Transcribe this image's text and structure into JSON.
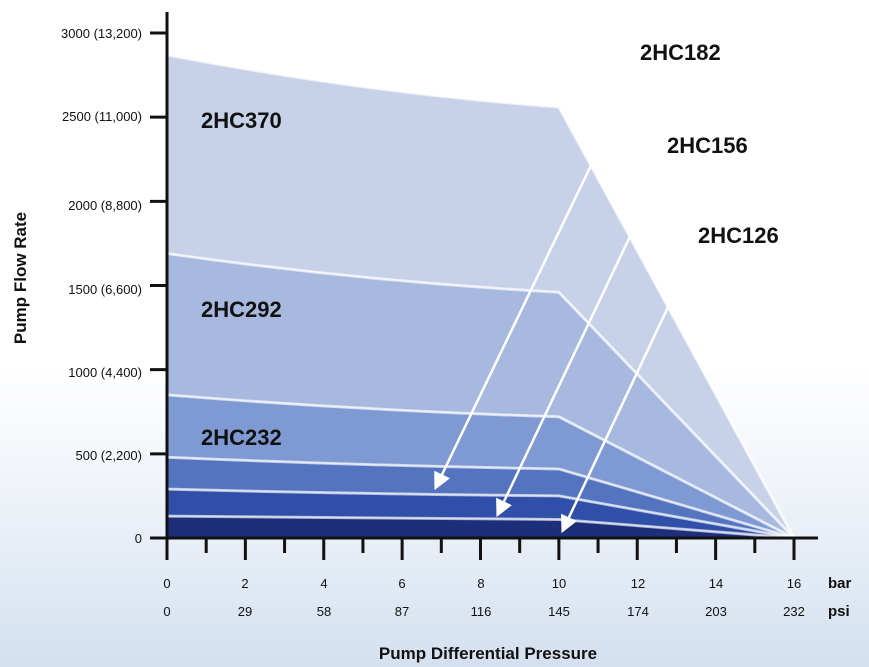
{
  "chart_data": {
    "type": "area",
    "xlabel": "Pump Differential Pressure",
    "ylabel": "Pump Flow Rate",
    "x_unit_primary": "bar",
    "x_unit_secondary": "psi",
    "x_ticks_bar": [
      "0",
      "2",
      "4",
      "6",
      "8",
      "10",
      "12",
      "14",
      "16"
    ],
    "x_ticks_psi": [
      "0",
      "29",
      "58",
      "87",
      "116",
      "145",
      "174",
      "203",
      "232"
    ],
    "y_ticks": [
      "0",
      "500 (2,200)",
      "1000 (4,400)",
      "1500 (6,600)",
      "2000 (8,800)",
      "2500 (11,000)",
      "3000 (13,200)"
    ],
    "xlim": [
      0,
      16
    ],
    "ylim": [
      0,
      3000
    ],
    "series": [
      {
        "name": "2HC370",
        "x": [
          0,
          10,
          16
        ],
        "y": [
          2870,
          2560,
          0
        ],
        "color": "#c7d1e8",
        "label_position": "inside",
        "arrow": false
      },
      {
        "name": "2HC292",
        "x": [
          0,
          10,
          16
        ],
        "y": [
          1690,
          1460,
          0
        ],
        "color": "#a8b9df",
        "label_position": "inside",
        "arrow": false
      },
      {
        "name": "2HC232",
        "x": [
          0,
          10,
          16
        ],
        "y": [
          850,
          720,
          0
        ],
        "color": "#7f99d2",
        "label_position": "inside",
        "arrow": false
      },
      {
        "name": "2HC182",
        "x": [
          0,
          10,
          16
        ],
        "y": [
          480,
          410,
          0
        ],
        "color": "#5574c0",
        "label_position": "callout",
        "arrow": true
      },
      {
        "name": "2HC156",
        "x": [
          0,
          10,
          16
        ],
        "y": [
          290,
          250,
          0
        ],
        "color": "#2f4fa8",
        "label_position": "callout",
        "arrow": true
      },
      {
        "name": "2HC126",
        "x": [
          0,
          10,
          16
        ],
        "y": [
          130,
          110,
          0
        ],
        "color": "#1d2f7a",
        "label_position": "callout",
        "arrow": true
      }
    ],
    "grid": false,
    "legend": "none"
  }
}
